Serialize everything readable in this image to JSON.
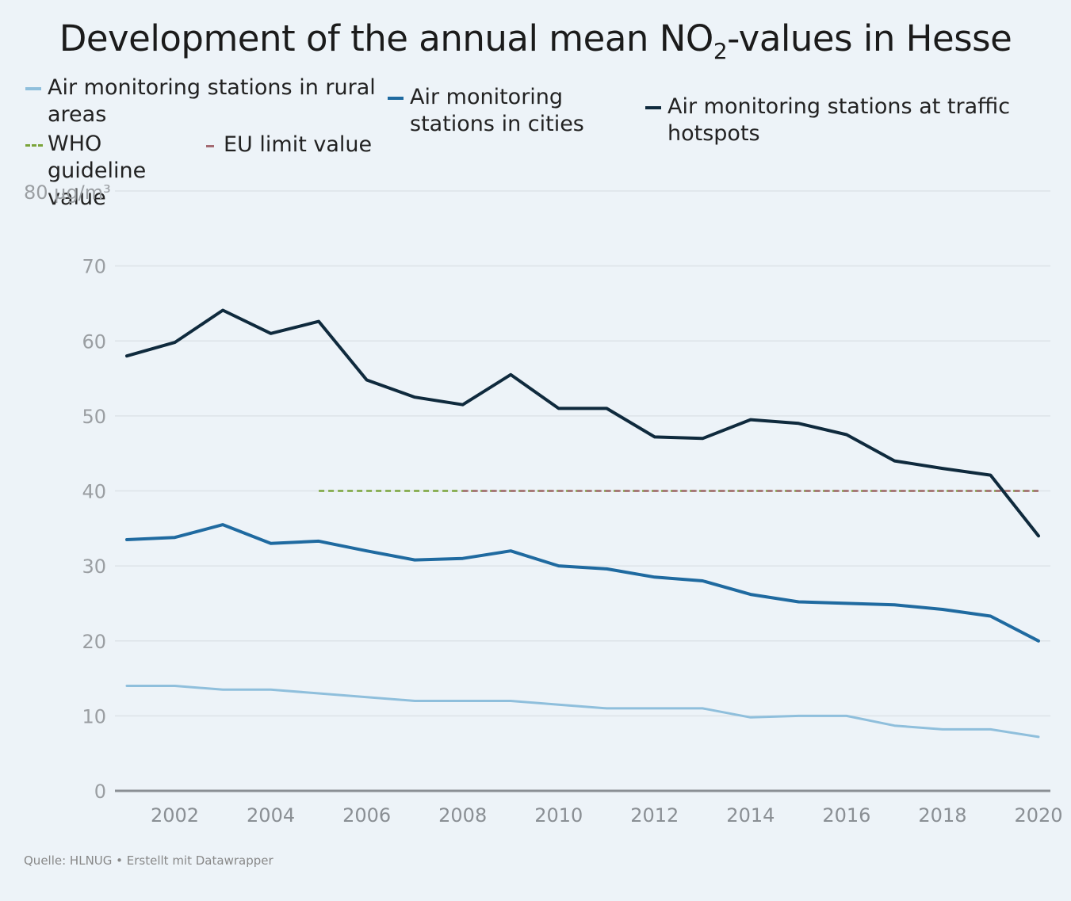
{
  "title": {
    "main": "Development of the annual mean NO",
    "sub": "2",
    "rest": "-values in Hesse"
  },
  "legend": [
    {
      "label": "Air monitoring stations in rural areas",
      "color": "#8fbfdc",
      "style": "solid"
    },
    {
      "label": "Air monitoring stations in cities",
      "color": "#1f6aa0",
      "style": "solid"
    },
    {
      "label": "Air monitoring stations at traffic hotspots",
      "color": "#0f2a3d",
      "style": "solid"
    },
    {
      "label": "WHO guideline value",
      "color": "#7aa43a",
      "style": "dashed"
    },
    {
      "label": "EU limit value",
      "color": "#a46a72",
      "style": "dashed"
    }
  ],
  "source": "Quelle: HLNUG • Erstellt mit Datawrapper",
  "chart_data": {
    "type": "line",
    "title": "Development of the annual mean NO2-values in Hesse",
    "x": [
      2001,
      2002,
      2003,
      2004,
      2005,
      2006,
      2007,
      2008,
      2009,
      2010,
      2011,
      2012,
      2013,
      2014,
      2015,
      2016,
      2017,
      2018,
      2019,
      2020
    ],
    "y_tick_labels": [
      "0",
      "10",
      "20",
      "30",
      "40",
      "50",
      "60",
      "70",
      "80 µg/m³"
    ],
    "y_ticks": [
      0,
      10,
      20,
      30,
      40,
      50,
      60,
      70,
      80
    ],
    "x_ticks": [
      2002,
      2004,
      2006,
      2008,
      2010,
      2012,
      2014,
      2016,
      2018,
      2020
    ],
    "ylim": [
      0,
      80
    ],
    "xlim": [
      2001,
      2020
    ],
    "grid": true,
    "legend_position": "top",
    "series": [
      {
        "name": "Air monitoring stations in rural areas",
        "color": "#8fbfdc",
        "width": 3,
        "values": [
          14,
          14,
          13.5,
          13.5,
          13,
          12.5,
          12,
          12,
          12,
          11.5,
          11,
          11,
          11,
          9.8,
          10,
          10,
          8.7,
          8.2,
          8.2,
          7.2
        ]
      },
      {
        "name": "Air monitoring stations in cities",
        "color": "#1f6aa0",
        "width": 4,
        "values": [
          33.5,
          33.8,
          35.5,
          33,
          33.3,
          32,
          30.8,
          31,
          32,
          30,
          29.6,
          28.5,
          28,
          26.2,
          25.2,
          25,
          24.8,
          24.2,
          23.3,
          20
        ]
      },
      {
        "name": "Air monitoring stations at traffic hotspots",
        "color": "#0f2a3d",
        "width": 4,
        "values": [
          58,
          59.8,
          64.1,
          61,
          62.6,
          54.8,
          52.5,
          51.5,
          55.5,
          51,
          51,
          47.2,
          47,
          49.5,
          49,
          47.5,
          44,
          43,
          42.1,
          34
        ]
      }
    ],
    "reference_lines": [
      {
        "name": "WHO guideline value",
        "value": 40,
        "from": 2005,
        "to": 2020,
        "color": "#7aa43a"
      },
      {
        "name": "EU limit value",
        "value": 40,
        "from": 2008,
        "to": 2020,
        "color": "#a46a72"
      }
    ]
  }
}
